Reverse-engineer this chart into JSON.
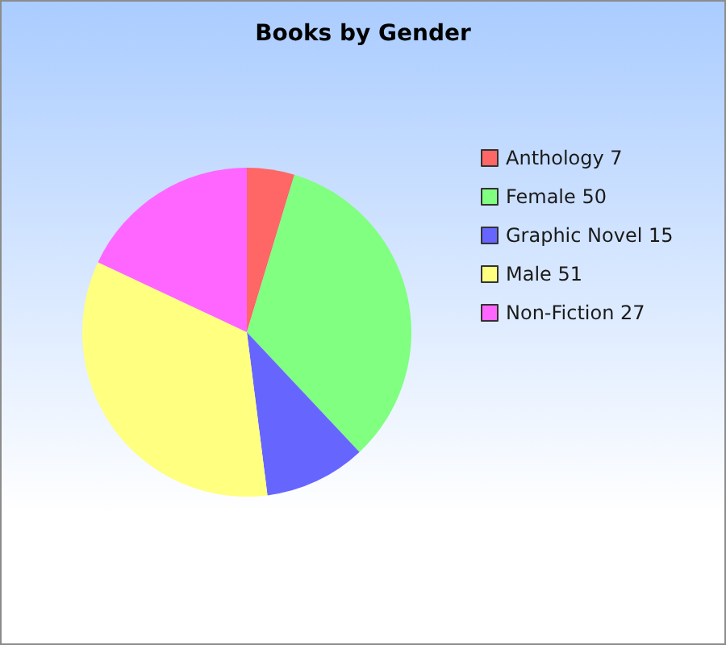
{
  "chart_data": {
    "type": "pie",
    "title": "Books by Gender",
    "categories": [
      "Anthology 7",
      "Female 50",
      "Graphic Novel 15",
      "Male 51",
      "Non-Fiction 27"
    ],
    "values": [
      7,
      50,
      15,
      51,
      27
    ],
    "colors": [
      "#ff6666",
      "#80ff80",
      "#6666ff",
      "#ffff80",
      "#ff66ff"
    ],
    "legend": "right"
  }
}
